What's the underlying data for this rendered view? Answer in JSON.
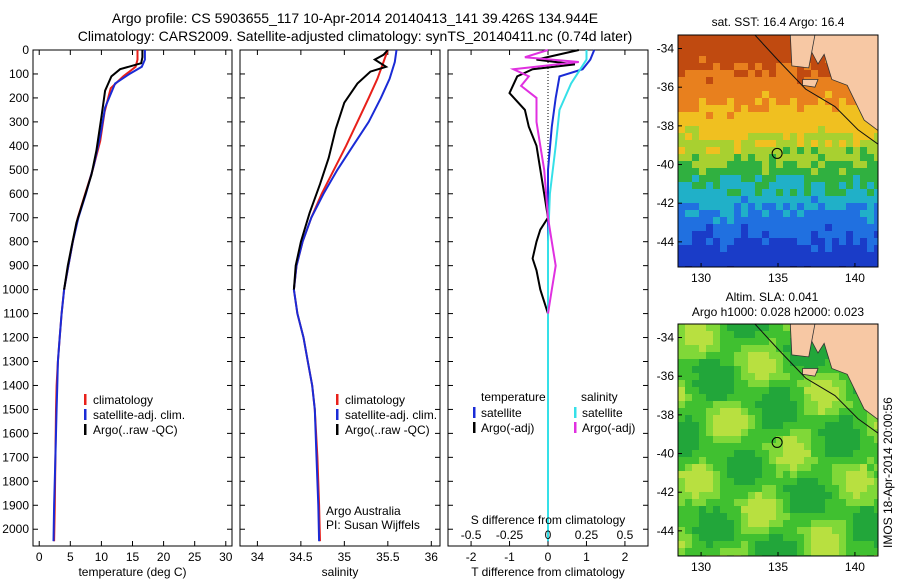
{
  "title_line1": "Argo profile: CS 5903655_117 10-Apr-2014 20140413_141 39.426S 134.944E",
  "title_line2": "Climatology: CARS2009. Satellite-adjusted climatology: synTS_20140411.nc (0.74d later)",
  "colors": {
    "climatology": "#e8201a",
    "satellite": "#1a2bd6",
    "argo": "#000000",
    "s_satellite": "#35e0e8",
    "s_argo": "#e030e0",
    "land": "#f7c8a4"
  },
  "chart_data": [
    {
      "type": "line",
      "id": "temperature",
      "xlabel": "temperature (deg C)",
      "xlim": [
        -1,
        31
      ],
      "ylim": [
        2070,
        0
      ],
      "xticks": [
        0,
        5,
        10,
        15,
        20,
        25,
        30
      ],
      "yticks": [
        0,
        100,
        200,
        300,
        400,
        500,
        600,
        700,
        800,
        900,
        1000,
        1100,
        1200,
        1300,
        1400,
        1500,
        1600,
        1700,
        1800,
        1900,
        2000
      ],
      "legend": [
        "climatology",
        "satellite-adj. clim.",
        "Argo(..raw -QC)"
      ],
      "series": [
        {
          "key": "climatology",
          "color": "#e8201a",
          "points": [
            [
              15.8,
              0
            ],
            [
              15.8,
              40
            ],
            [
              15.5,
              70
            ],
            [
              13.5,
              110
            ],
            [
              11.5,
              160
            ],
            [
              10.5,
              260
            ],
            [
              9.8,
              380
            ],
            [
              8.6,
              500
            ],
            [
              7.4,
              600
            ],
            [
              6.2,
              700
            ],
            [
              5.4,
              800
            ],
            [
              4.7,
              900
            ],
            [
              4.0,
              1000
            ],
            [
              3.6,
              1100
            ],
            [
              3.3,
              1200
            ],
            [
              3.0,
              1300
            ],
            [
              2.8,
              1400
            ],
            [
              2.7,
              1500
            ],
            [
              2.6,
              1700
            ],
            [
              2.5,
              1900
            ],
            [
              2.4,
              2050
            ]
          ]
        },
        {
          "key": "satellite",
          "color": "#1a2bd6",
          "points": [
            [
              17.0,
              0
            ],
            [
              17.0,
              40
            ],
            [
              16.5,
              70
            ],
            [
              14.5,
              100
            ],
            [
              12.2,
              140
            ],
            [
              10.6,
              240
            ],
            [
              9.8,
              360
            ],
            [
              8.8,
              480
            ],
            [
              7.5,
              600
            ],
            [
              6.3,
              700
            ],
            [
              5.4,
              800
            ],
            [
              4.7,
              900
            ],
            [
              4.0,
              1000
            ],
            [
              3.6,
              1100
            ],
            [
              3.3,
              1200
            ],
            [
              3.0,
              1300
            ],
            [
              2.9,
              1400
            ],
            [
              2.8,
              1500
            ],
            [
              2.6,
              1700
            ],
            [
              2.4,
              1900
            ],
            [
              2.3,
              2050
            ]
          ]
        },
        {
          "key": "argo",
          "color": "#000000",
          "points": [
            [
              16.6,
              0
            ],
            [
              16.6,
              30
            ],
            [
              16.4,
              55
            ],
            [
              13.0,
              80
            ],
            [
              11.6,
              110
            ],
            [
              10.6,
              170
            ],
            [
              10.0,
              280
            ],
            [
              9.2,
              420
            ],
            [
              8.4,
              520
            ],
            [
              7.2,
              620
            ],
            [
              6.0,
              720
            ],
            [
              5.2,
              820
            ],
            [
              4.6,
              900
            ],
            [
              4.0,
              1000
            ]
          ]
        }
      ]
    },
    {
      "type": "line",
      "id": "salinity",
      "xlabel": "salinity",
      "xlim": [
        33.8,
        36.1
      ],
      "ylim": [
        2070,
        0
      ],
      "xticks": [
        34,
        34.5,
        35,
        35.5,
        36
      ],
      "xticklabels": [
        "34",
        "34.5",
        "35",
        "35.5",
        "36"
      ],
      "legend": [
        "climatology",
        "satellite-adj. clim.",
        "Argo(..raw -QC)"
      ],
      "note": [
        "Argo Australia",
        "PI: Susan Wijffels"
      ],
      "series": [
        {
          "key": "climatology",
          "color": "#e8201a",
          "points": [
            [
              35.5,
              0
            ],
            [
              35.45,
              50
            ],
            [
              35.38,
              120
            ],
            [
              35.28,
              200
            ],
            [
              35.15,
              300
            ],
            [
              35.02,
              400
            ],
            [
              34.88,
              500
            ],
            [
              34.74,
              600
            ],
            [
              34.62,
              700
            ],
            [
              34.52,
              800
            ],
            [
              34.45,
              900
            ],
            [
              34.42,
              1000
            ],
            [
              34.46,
              1100
            ],
            [
              34.53,
              1200
            ],
            [
              34.58,
              1300
            ],
            [
              34.63,
              1400
            ],
            [
              34.66,
              1500
            ],
            [
              34.69,
              1700
            ],
            [
              34.71,
              1900
            ],
            [
              34.72,
              2050
            ]
          ]
        },
        {
          "key": "satellite",
          "color": "#1a2bd6",
          "points": [
            [
              35.6,
              0
            ],
            [
              35.58,
              50
            ],
            [
              35.52,
              120
            ],
            [
              35.42,
              200
            ],
            [
              35.28,
              300
            ],
            [
              35.1,
              400
            ],
            [
              34.92,
              500
            ],
            [
              34.76,
              600
            ],
            [
              34.62,
              700
            ],
            [
              34.52,
              800
            ],
            [
              34.45,
              900
            ],
            [
              34.42,
              1000
            ],
            [
              34.46,
              1100
            ],
            [
              34.53,
              1200
            ],
            [
              34.58,
              1300
            ],
            [
              34.63,
              1400
            ],
            [
              34.66,
              1500
            ],
            [
              34.68,
              1700
            ],
            [
              34.7,
              1900
            ],
            [
              34.71,
              2050
            ]
          ]
        },
        {
          "key": "argo",
          "color": "#000000",
          "points": [
            [
              35.5,
              0
            ],
            [
              35.45,
              20
            ],
            [
              35.35,
              40
            ],
            [
              35.48,
              70
            ],
            [
              35.3,
              90
            ],
            [
              35.15,
              140
            ],
            [
              35.0,
              220
            ],
            [
              34.9,
              330
            ],
            [
              34.82,
              450
            ],
            [
              34.72,
              560
            ],
            [
              34.6,
              680
            ],
            [
              34.5,
              800
            ],
            [
              34.44,
              900
            ],
            [
              34.42,
              1000
            ]
          ]
        }
      ]
    },
    {
      "type": "line",
      "id": "difference",
      "xlabel": "T difference from climatology",
      "xlabel_top": "S difference from climatology",
      "xlim": [
        -2.6,
        2.6
      ],
      "ylim": [
        2070,
        0
      ],
      "xticks": [
        -2,
        -1,
        0,
        1,
        2
      ],
      "sticks": [
        -0.5,
        -0.25,
        0,
        0.25,
        0.5
      ],
      "sticklabels": [
        "-0.5",
        "-0.25",
        "0",
        "0.25",
        "0.5"
      ],
      "legend_titles": [
        "temperature",
        "salinity"
      ],
      "legend": [
        "satellite",
        "Argo(-adj)",
        "satellite",
        "Argo(-adj)"
      ],
      "series": [
        {
          "key": "t_satellite",
          "color": "#1a2bd6",
          "points": [
            [
              1.2,
              0
            ],
            [
              1.1,
              40
            ],
            [
              0.9,
              80
            ],
            [
              0.3,
              110
            ],
            [
              0.2,
              200
            ],
            [
              0.1,
              320
            ],
            [
              0,
              500
            ],
            [
              0,
              800
            ],
            [
              0,
              1100
            ],
            [
              0,
              2050
            ]
          ]
        },
        {
          "key": "t_argo",
          "color": "#000000",
          "points": [
            [
              0.8,
              0
            ],
            [
              -0.3,
              40
            ],
            [
              0.7,
              60
            ],
            [
              -0.4,
              80
            ],
            [
              -0.8,
              110
            ],
            [
              -1.0,
              180
            ],
            [
              -0.6,
              250
            ],
            [
              -0.5,
              320
            ],
            [
              -0.3,
              400
            ],
            [
              -0.1,
              600
            ],
            [
              0,
              700
            ],
            [
              -0.2,
              750
            ],
            [
              -0.3,
              800
            ],
            [
              -0.4,
              870
            ],
            [
              -0.3,
              920
            ],
            [
              -0.2,
              1000
            ],
            [
              0,
              1100
            ]
          ]
        },
        {
          "key": "s_satellite",
          "color": "#35e0e8",
          "points": [
            [
              1.0,
              0
            ],
            [
              1.0,
              40
            ],
            [
              0.8,
              90
            ],
            [
              0.6,
              140
            ],
            [
              0.3,
              250
            ],
            [
              0.2,
              400
            ],
            [
              0.05,
              600
            ],
            [
              0,
              800
            ],
            [
              0,
              1100
            ],
            [
              0,
              2050
            ]
          ]
        },
        {
          "key": "s_argo",
          "color": "#e030e0",
          "points": [
            [
              0,
              0
            ],
            [
              -0.6,
              30
            ],
            [
              0.8,
              50
            ],
            [
              -0.9,
              80
            ],
            [
              -0.5,
              110
            ],
            [
              -0.7,
              150
            ],
            [
              -0.3,
              200
            ],
            [
              -0.3,
              300
            ],
            [
              -0.2,
              400
            ],
            [
              -0.1,
              500
            ],
            [
              0.0,
              700
            ],
            [
              0.1,
              800
            ],
            [
              0.2,
              900
            ],
            [
              0.1,
              1000
            ],
            [
              0,
              1100
            ]
          ]
        }
      ]
    },
    {
      "type": "heatmap",
      "id": "map_sst",
      "title": "sat. SST: 16.4 Argo: 16.4",
      "xlim": [
        128.5,
        141.5
      ],
      "ylim": [
        -45.3,
        -33.3
      ],
      "xticks": [
        130,
        135,
        140
      ],
      "yticks": [
        -34,
        -36,
        -38,
        -40,
        -42,
        -44
      ],
      "marker": [
        134.944,
        -39.426
      ]
    },
    {
      "type": "heatmap",
      "id": "map_sla",
      "title_line1": "Altim. SLA: 0.041",
      "title_line2": "Argo h1000: 0.028 h2000: 0.023",
      "xlim": [
        128.5,
        141.5
      ],
      "ylim": [
        -45.3,
        -33.3
      ],
      "xticks": [
        130,
        135,
        140
      ],
      "yticks": [
        -34,
        -36,
        -38,
        -40,
        -42,
        -44
      ],
      "marker": [
        134.944,
        -39.426
      ]
    }
  ],
  "footer_stamp": "IMOS 18-Apr-2014 20:00:56"
}
